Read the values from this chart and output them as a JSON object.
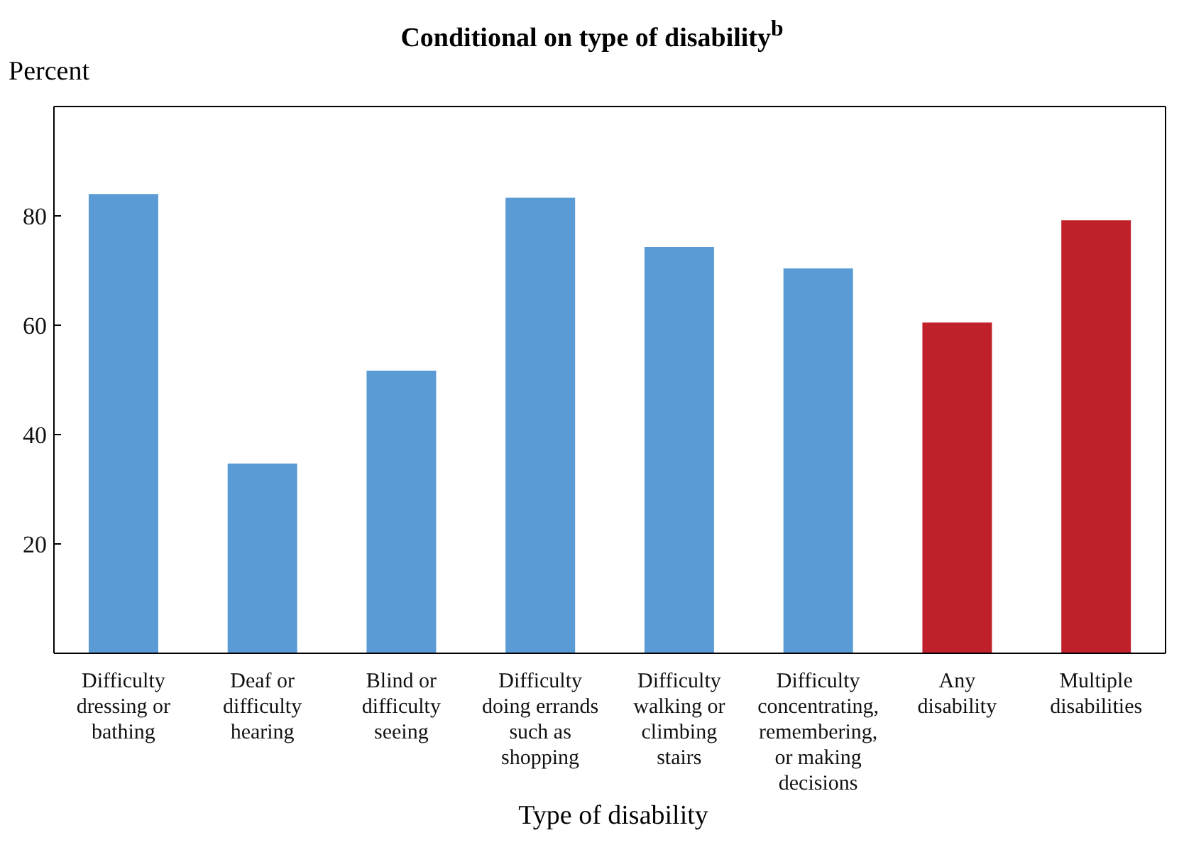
{
  "chart_data": {
    "type": "bar",
    "title": "Conditional on type of disability$^{b}$",
    "ylabel": "Percent",
    "xlabel": "Type of disability",
    "categories": [
      "Difficulty dressing or bathing",
      "Deaf or difficulty hearing",
      "Blind or difficulty seeing",
      "Difficulty doing errands such as shopping",
      "Difficulty walking or climbing stairs",
      "Difficulty concentrating, remembering, or making decisions",
      "Any disability",
      "Multiple disabilities"
    ],
    "values": [
      84,
      34.7,
      51.7,
      83.3,
      74.3,
      70.4,
      60.5,
      79.2
    ],
    "colors": [
      "#5b9bd5",
      "#5b9bd5",
      "#5b9bd5",
      "#5b9bd5",
      "#5b9bd5",
      "#5b9bd5",
      "#c0202a",
      "#c0202a"
    ],
    "ylim": [
      0,
      100
    ],
    "yticks": [
      20,
      40,
      60,
      80
    ],
    "grid": false
  }
}
